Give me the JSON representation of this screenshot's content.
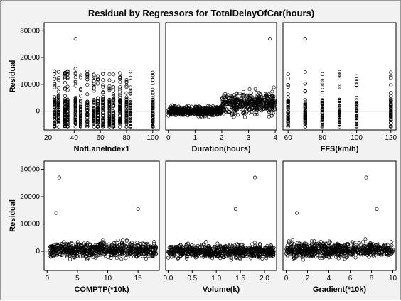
{
  "chart_data": {
    "type": "scatter",
    "title": "Residual by Regressors for TotalDelayOfCar(hours)",
    "ylabel": "Residual",
    "ylim": [
      -7000,
      33000
    ],
    "yticks": [
      0,
      10000,
      20000,
      30000
    ],
    "reference_line": 0,
    "marker": "open-circle",
    "colors": {
      "marker": "#000000",
      "reference_line": "#9a9a9a",
      "panel_background": "#ffffff",
      "figure_background": "#f2f2f2"
    },
    "panels": [
      {
        "id": "noflaneindex1",
        "xlabel": "NofLaneIndex1",
        "xlim": [
          17,
          105
        ],
        "xticks": [
          20,
          40,
          60,
          80,
          100
        ],
        "pattern": "discrete",
        "levels": [
          25,
          28,
          33,
          35,
          41,
          45,
          50,
          55,
          58,
          62,
          67,
          70,
          75,
          80,
          83,
          100
        ],
        "y_range": [
          -6000,
          15000
        ],
        "outliers": [
          {
            "x": 41,
            "y": 27000
          },
          {
            "x": 41,
            "y": 15800
          },
          {
            "x": 67,
            "y": 13800
          }
        ]
      },
      {
        "id": "duration",
        "xlabel": "Duration(hours)",
        "xlim": [
          -0.1,
          4.05
        ],
        "xticks": [
          0,
          1,
          2,
          3,
          4
        ],
        "pattern": "cloud",
        "segments": [
          {
            "x_range": [
              0.0,
              2.0
            ],
            "y_center": 0,
            "y_spread": 3000
          },
          {
            "x_range": [
              2.0,
              4.0
            ],
            "y_center": 3000,
            "y_spread": 7000
          }
        ],
        "outliers": [
          {
            "x": 3.8,
            "y": 27000
          }
        ]
      },
      {
        "id": "ffs",
        "xlabel": "FFS(km/h)",
        "xlim": [
          57,
          123
        ],
        "xticks": [
          60,
          80,
          100,
          120
        ],
        "pattern": "discrete",
        "levels": [
          60,
          70,
          80,
          90,
          100,
          120
        ],
        "y_range": [
          -6000,
          15000
        ],
        "outliers": [
          {
            "x": 70,
            "y": 27000
          }
        ]
      },
      {
        "id": "comptp",
        "xlabel": "COMPTP(*10k)",
        "xlim": [
          -0.5,
          18.5
        ],
        "xticks": [
          0,
          5,
          10,
          15
        ],
        "pattern": "cloud",
        "segments": [
          {
            "x_range": [
              0.5,
              18.0
            ],
            "y_center": 500,
            "y_spread": 4500
          }
        ],
        "outliers": [
          {
            "x": 2,
            "y": 27000
          },
          {
            "x": 1.5,
            "y": 14000
          },
          {
            "x": 15,
            "y": 15500
          }
        ]
      },
      {
        "id": "volume",
        "xlabel": "Volume(k)",
        "xlim": [
          -0.05,
          2.25
        ],
        "xticks": [
          0.0,
          0.5,
          1.0,
          1.5,
          2.0
        ],
        "pattern": "cloud",
        "segments": [
          {
            "x_range": [
              0.0,
              2.2
            ],
            "y_center": 0,
            "y_spread": 4000
          }
        ],
        "outliers": [
          {
            "x": 1.8,
            "y": 27000
          },
          {
            "x": 1.4,
            "y": 15500
          }
        ]
      },
      {
        "id": "gradient",
        "xlabel": "Gradient(*10k)",
        "xlim": [
          -0.3,
          10.3
        ],
        "xticks": [
          0,
          2,
          4,
          6,
          8,
          10
        ],
        "pattern": "cloud",
        "segments": [
          {
            "x_range": [
              0.0,
              10.0
            ],
            "y_center": 500,
            "y_spread": 4500
          }
        ],
        "outliers": [
          {
            "x": 7.5,
            "y": 27000
          },
          {
            "x": 1.0,
            "y": 14000
          },
          {
            "x": 8.5,
            "y": 15500
          }
        ]
      }
    ]
  }
}
